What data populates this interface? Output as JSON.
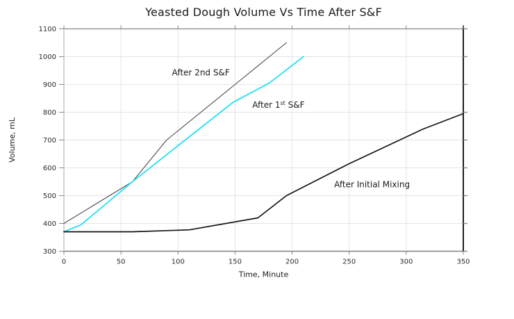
{
  "chart_data": {
    "type": "line",
    "title": "Yeasted Dough Volume Vs Time After S&F",
    "xlabel": "Time, Minute",
    "ylabel": "Volume, mL",
    "xlim": [
      0,
      350
    ],
    "ylim": [
      300,
      1100
    ],
    "xticks": [
      0,
      50,
      100,
      150,
      200,
      250,
      300,
      350
    ],
    "yticks": [
      300,
      400,
      500,
      600,
      700,
      800,
      900,
      1000,
      1100
    ],
    "grid": true,
    "legend_position": "inline-annotations",
    "colors": {
      "background": "#ffffff",
      "grid": "#e4e4e4",
      "axis_left": "#aaaaaa",
      "axis_bottom": "#8f8f8f",
      "axis_top": "#999999",
      "axis_right": "#1c1c1c",
      "tick": "#888888",
      "tick_label": "#2b2b2b",
      "text": "#1a1a1a"
    },
    "series": [
      {
        "name": "After 2nd S&F",
        "color": "#4a4a4a",
        "stroke_width": 1.1,
        "points": [
          [
            0,
            400
          ],
          [
            60,
            550
          ],
          [
            90,
            700
          ],
          [
            150,
            900
          ],
          [
            195,
            1050
          ]
        ],
        "annotation": {
          "text_before": "After 2nd S&F",
          "sup": "",
          "text_after": "",
          "x": 120,
          "y": 943
        }
      },
      {
        "name": "After 1st S&F",
        "color": "#29e2f4",
        "stroke_width": 1.9,
        "points": [
          [
            0,
            370
          ],
          [
            15,
            395
          ],
          [
            60,
            550
          ],
          [
            148,
            835
          ],
          [
            180,
            905
          ],
          [
            210,
            1000
          ]
        ],
        "annotation": {
          "text_before": "After 1",
          "sup": "st",
          "text_after": " S&F",
          "x": 188,
          "y": 826
        }
      },
      {
        "name": "After Initial Mixing",
        "color": "#141414",
        "stroke_width": 1.7,
        "points": [
          [
            0,
            370
          ],
          [
            60,
            370
          ],
          [
            110,
            377
          ],
          [
            170,
            420
          ],
          [
            195,
            500
          ],
          [
            250,
            615
          ],
          [
            315,
            740
          ],
          [
            350,
            795
          ]
        ],
        "annotation": {
          "text_before": "After Initial Mixing",
          "sup": "",
          "text_after": "",
          "x": 270,
          "y": 540
        }
      }
    ]
  }
}
